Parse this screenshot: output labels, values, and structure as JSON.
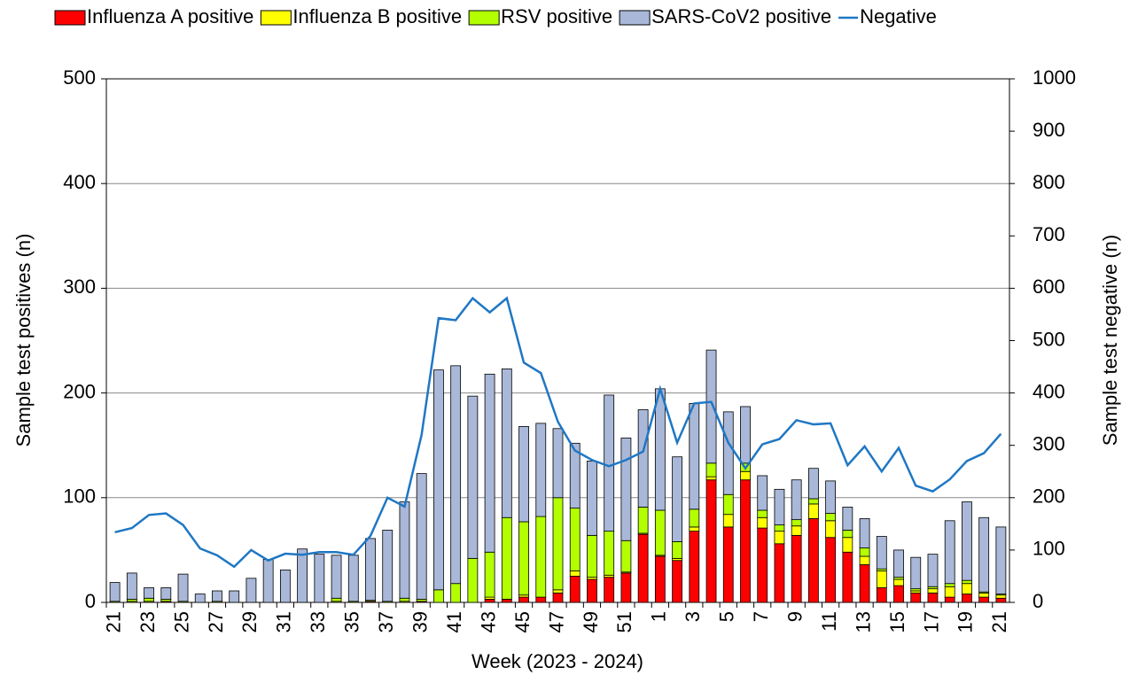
{
  "chart_data": {
    "type": "bar",
    "stacked": true,
    "x_label": "Week (2023 - 2024)",
    "y_label": "Sample test positives (n)",
    "y2_label": "Sample test negative (n)",
    "categories": [
      "21",
      null,
      "23",
      null,
      "25",
      null,
      "27",
      null,
      "29",
      null,
      "31",
      null,
      "33",
      null,
      "35",
      null,
      "37",
      null,
      "39",
      null,
      "41",
      null,
      "43",
      null,
      "45",
      null,
      "47",
      null,
      "49",
      null,
      "51",
      null,
      "1",
      null,
      "3",
      null,
      "5",
      null,
      "7",
      null,
      "9",
      null,
      "11",
      null,
      "13",
      null,
      "15",
      null,
      "17",
      null,
      "19",
      null,
      "21"
    ],
    "series": [
      {
        "name": "Influenza A positive",
        "type": "bar",
        "color": "#ff0000",
        "values": [
          0,
          0,
          0,
          1,
          0,
          0,
          0,
          0,
          0,
          0,
          0,
          0,
          0,
          0,
          0,
          1,
          0,
          0,
          1,
          0,
          0,
          0,
          3,
          3,
          5,
          5,
          9,
          25,
          22,
          24,
          28,
          65,
          44,
          40,
          68,
          117,
          72,
          117,
          71,
          56,
          64,
          80,
          62,
          48,
          36,
          14,
          16,
          9,
          9,
          5,
          8,
          5,
          4
        ]
      },
      {
        "name": "Influenza B positive",
        "type": "bar",
        "color": "#ffff00",
        "values": [
          0,
          1,
          1,
          0,
          0,
          0,
          0,
          0,
          0,
          0,
          0,
          0,
          0,
          1,
          0,
          0,
          0,
          1,
          0,
          0,
          0,
          0,
          2,
          0,
          2,
          0,
          3,
          5,
          2,
          2,
          1,
          1,
          1,
          2,
          4,
          3,
          12,
          8,
          10,
          12,
          9,
          14,
          16,
          14,
          8,
          16,
          6,
          2,
          4,
          10,
          10,
          4,
          3
        ]
      },
      {
        "name": "RSV positive",
        "type": "bar",
        "color": "#b3ff00",
        "values": [
          1,
          2,
          3,
          2,
          1,
          0,
          1,
          0,
          0,
          0,
          0,
          0,
          0,
          3,
          1,
          1,
          1,
          3,
          2,
          12,
          18,
          42,
          43,
          78,
          70,
          77,
          88,
          60,
          40,
          42,
          30,
          25,
          43,
          16,
          17,
          13,
          19,
          8,
          7,
          6,
          6,
          5,
          7,
          7,
          8,
          2,
          2,
          2,
          2,
          3,
          3,
          1,
          1
        ]
      },
      {
        "name": "SARS-CoV2 positive",
        "type": "bar",
        "color": "#a9b8d8",
        "values": [
          18,
          25,
          10,
          11,
          26,
          8,
          10,
          11,
          23,
          41,
          31,
          51,
          46,
          41,
          44,
          59,
          68,
          92,
          120,
          210,
          208,
          155,
          170,
          142,
          91,
          89,
          66,
          62,
          71,
          130,
          98,
          93,
          116,
          81,
          101,
          108,
          79,
          54,
          33,
          34,
          38,
          29,
          31,
          22,
          28,
          31,
          26,
          30,
          31,
          60,
          75,
          71,
          64
        ]
      },
      {
        "name": "Negative",
        "type": "line",
        "axis": "y2",
        "color": "#1f77c4",
        "values": [
          134,
          142,
          167,
          170,
          148,
          103,
          90,
          68,
          100,
          80,
          93,
          91,
          96,
          96,
          91,
          127,
          200,
          183,
          320,
          543,
          539,
          581,
          554,
          581,
          458,
          438,
          345,
          290,
          272,
          260,
          272,
          288,
          408,
          305,
          380,
          383,
          305,
          256,
          302,
          312,
          348,
          340,
          342,
          262,
          298,
          250,
          295,
          223,
          212,
          235,
          270,
          285,
          322
        ]
      }
    ],
    "ylim": [
      0,
      500
    ],
    "yticks": [
      0,
      100,
      200,
      300,
      400,
      500
    ],
    "y2lim": [
      0,
      1000
    ],
    "y2ticks": [
      0,
      100,
      200,
      300,
      400,
      500,
      600,
      700,
      800,
      900,
      1000
    ],
    "grid": true,
    "legend": "top"
  }
}
